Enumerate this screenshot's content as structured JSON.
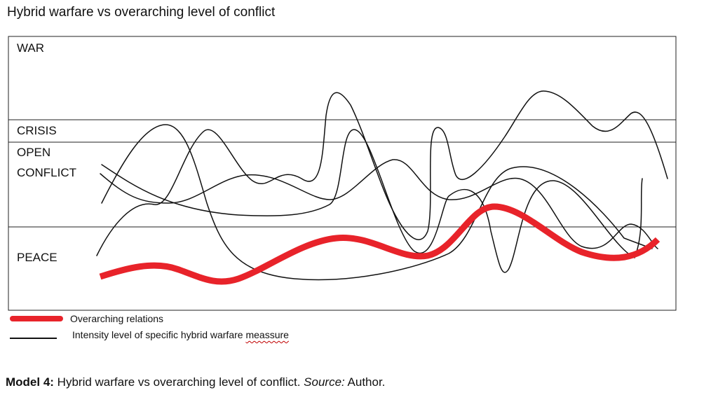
{
  "title": "Hybrid warfare vs overarching level of conflict",
  "zones": {
    "war": "WAR",
    "crisis": "CRISIS",
    "open_conflict_line1": "OPEN",
    "open_conflict_line2": "CONFLICT",
    "peace": "PEACE"
  },
  "legend": {
    "overarching": {
      "label": "Overarching relations",
      "color": "#e8232a"
    },
    "intensity": {
      "label_prefix": "Intensity level of specific hybrid warfare ",
      "label_word": "meassure",
      "color": "#111111"
    }
  },
  "caption": {
    "model": "Model 4:",
    "text": " Hybrid warfare vs overarching level of conflict. ",
    "source_label": "Source:",
    "source": " Author."
  }
}
